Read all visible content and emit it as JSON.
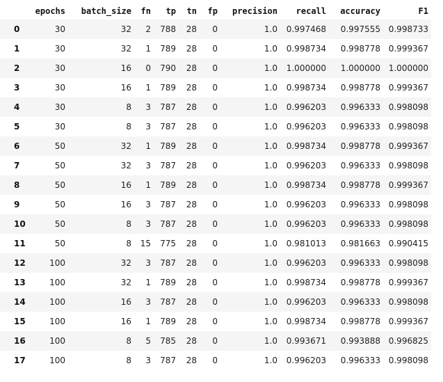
{
  "table": {
    "columns": [
      "epochs",
      "batch_size",
      "fn",
      "tp",
      "tn",
      "fp",
      "precision",
      "recall",
      "accuracy",
      "F1"
    ],
    "rows": [
      {
        "index": "0",
        "cells": [
          "30",
          "32",
          "2",
          "788",
          "28",
          "0",
          "1.0",
          "0.997468",
          "0.997555",
          "0.998733"
        ]
      },
      {
        "index": "1",
        "cells": [
          "30",
          "32",
          "1",
          "789",
          "28",
          "0",
          "1.0",
          "0.998734",
          "0.998778",
          "0.999367"
        ]
      },
      {
        "index": "2",
        "cells": [
          "30",
          "16",
          "0",
          "790",
          "28",
          "0",
          "1.0",
          "1.000000",
          "1.000000",
          "1.000000"
        ]
      },
      {
        "index": "3",
        "cells": [
          "30",
          "16",
          "1",
          "789",
          "28",
          "0",
          "1.0",
          "0.998734",
          "0.998778",
          "0.999367"
        ]
      },
      {
        "index": "4",
        "cells": [
          "30",
          "8",
          "3",
          "787",
          "28",
          "0",
          "1.0",
          "0.996203",
          "0.996333",
          "0.998098"
        ]
      },
      {
        "index": "5",
        "cells": [
          "30",
          "8",
          "3",
          "787",
          "28",
          "0",
          "1.0",
          "0.996203",
          "0.996333",
          "0.998098"
        ]
      },
      {
        "index": "6",
        "cells": [
          "50",
          "32",
          "1",
          "789",
          "28",
          "0",
          "1.0",
          "0.998734",
          "0.998778",
          "0.999367"
        ]
      },
      {
        "index": "7",
        "cells": [
          "50",
          "32",
          "3",
          "787",
          "28",
          "0",
          "1.0",
          "0.996203",
          "0.996333",
          "0.998098"
        ]
      },
      {
        "index": "8",
        "cells": [
          "50",
          "16",
          "1",
          "789",
          "28",
          "0",
          "1.0",
          "0.998734",
          "0.998778",
          "0.999367"
        ]
      },
      {
        "index": "9",
        "cells": [
          "50",
          "16",
          "3",
          "787",
          "28",
          "0",
          "1.0",
          "0.996203",
          "0.996333",
          "0.998098"
        ]
      },
      {
        "index": "10",
        "cells": [
          "50",
          "8",
          "3",
          "787",
          "28",
          "0",
          "1.0",
          "0.996203",
          "0.996333",
          "0.998098"
        ]
      },
      {
        "index": "11",
        "cells": [
          "50",
          "8",
          "15",
          "775",
          "28",
          "0",
          "1.0",
          "0.981013",
          "0.981663",
          "0.990415"
        ]
      },
      {
        "index": "12",
        "cells": [
          "100",
          "32",
          "3",
          "787",
          "28",
          "0",
          "1.0",
          "0.996203",
          "0.996333",
          "0.998098"
        ]
      },
      {
        "index": "13",
        "cells": [
          "100",
          "32",
          "1",
          "789",
          "28",
          "0",
          "1.0",
          "0.998734",
          "0.998778",
          "0.999367"
        ]
      },
      {
        "index": "14",
        "cells": [
          "100",
          "16",
          "3",
          "787",
          "28",
          "0",
          "1.0",
          "0.996203",
          "0.996333",
          "0.998098"
        ]
      },
      {
        "index": "15",
        "cells": [
          "100",
          "16",
          "1",
          "789",
          "28",
          "0",
          "1.0",
          "0.998734",
          "0.998778",
          "0.999367"
        ]
      },
      {
        "index": "16",
        "cells": [
          "100",
          "8",
          "5",
          "785",
          "28",
          "0",
          "1.0",
          "0.993671",
          "0.993888",
          "0.996825"
        ]
      },
      {
        "index": "17",
        "cells": [
          "100",
          "8",
          "3",
          "787",
          "28",
          "0",
          "1.0",
          "0.996203",
          "0.996333",
          "0.998098"
        ]
      }
    ]
  },
  "colors": {
    "stripe": "#f5f5f5",
    "background": "#ffffff",
    "text": "#212121"
  }
}
